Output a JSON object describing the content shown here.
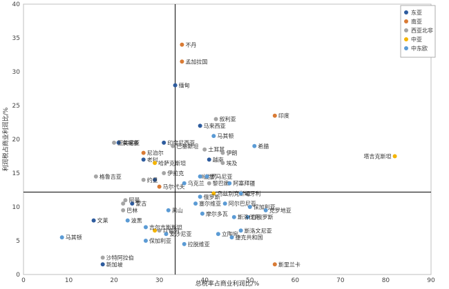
{
  "chart_data": {
    "type": "scatter",
    "xlabel": "总税率占商业利润比/%",
    "ylabel": "利润税占商业利润比/%",
    "xlim": [
      0,
      90
    ],
    "ylim": [
      0,
      40
    ],
    "xticks": [
      0,
      10,
      20,
      30,
      40,
      50,
      60,
      70,
      80,
      90
    ],
    "yticks": [
      0,
      5,
      10,
      15,
      20,
      25,
      30,
      35,
      40
    ],
    "reference_lines": {
      "x": 33.5,
      "y": 12.2
    },
    "legend_position": "top-right",
    "series": [
      {
        "name": "东亚",
        "color": "#2E5C9E",
        "points": [
          {
            "x": 33.5,
            "y": 28,
            "label": "缅甸"
          },
          {
            "x": 39,
            "y": 22,
            "label": "马来西亚"
          },
          {
            "x": 31,
            "y": 19.5,
            "label": "印度尼西亚"
          },
          {
            "x": 21,
            "y": 19.5,
            "label": "柬埔寨"
          },
          {
            "x": 26.5,
            "y": 17,
            "label": "老挝"
          },
          {
            "x": 15.5,
            "y": 8,
            "label": "文莱"
          },
          {
            "x": 24,
            "y": 10.5,
            "label": "蒙古"
          },
          {
            "x": 17.5,
            "y": 1.5,
            "label": "新加坡"
          },
          {
            "x": 41,
            "y": 17,
            "label": "越南"
          },
          {
            "x": 29,
            "y": 14,
            "label": ""
          }
        ]
      },
      {
        "name": "南亚",
        "color": "#D97B35",
        "points": [
          {
            "x": 35,
            "y": 34,
            "label": "不丹"
          },
          {
            "x": 35,
            "y": 31.5,
            "label": "孟加拉国"
          },
          {
            "x": 55.5,
            "y": 23.5,
            "label": "印度"
          },
          {
            "x": 26.5,
            "y": 18,
            "label": "尼泊尔"
          },
          {
            "x": 30,
            "y": 13,
            "label": "马尔代夫"
          },
          {
            "x": 55.5,
            "y": 1.5,
            "label": "斯里兰卡"
          }
        ]
      },
      {
        "name": "西亚北非",
        "color": "#A5A5A5",
        "points": [
          {
            "x": 42.5,
            "y": 23,
            "label": "叙利亚"
          },
          {
            "x": 20,
            "y": 19.5,
            "label": "亚美尼亚"
          },
          {
            "x": 33,
            "y": 19,
            "label": "巴基斯坦"
          },
          {
            "x": 40,
            "y": 18.5,
            "label": "土耳其"
          },
          {
            "x": 44,
            "y": 18,
            "label": "伊朗"
          },
          {
            "x": 44,
            "y": 16.5,
            "label": "埃及"
          },
          {
            "x": 16,
            "y": 14.5,
            "label": "格鲁吉亚"
          },
          {
            "x": 31,
            "y": 15,
            "label": "伊拉克"
          },
          {
            "x": 39.5,
            "y": 14.5,
            "label": "也门"
          },
          {
            "x": 26.5,
            "y": 14,
            "label": "约旦"
          },
          {
            "x": 41,
            "y": 13.5,
            "label": "黎巴嫩"
          },
          {
            "x": 22.5,
            "y": 11,
            "label": "阿曼"
          },
          {
            "x": 22,
            "y": 10.5,
            "label": ""
          },
          {
            "x": 22,
            "y": 9.5,
            "label": "巴林"
          },
          {
            "x": 30,
            "y": 6.5,
            "label": "以色列"
          },
          {
            "x": 17.5,
            "y": 2.5,
            "label": "沙特阿拉伯"
          }
        ]
      },
      {
        "name": "中亚",
        "color": "#F4B400",
        "points": [
          {
            "x": 82,
            "y": 17.5,
            "label": "塔吉克斯坦"
          },
          {
            "x": 29,
            "y": 16.5,
            "label": "哈萨克斯坦"
          },
          {
            "x": 42,
            "y": 12,
            "label": "乌兹别克斯坦"
          },
          {
            "x": 29,
            "y": 6.5,
            "label": ""
          }
        ]
      },
      {
        "name": "中东欧",
        "color": "#5B9BD5",
        "points": [
          {
            "x": 45.5,
            "y": 13.5,
            "label": "阿塞拜疆"
          },
          {
            "x": 39,
            "y": 14.5,
            "label": "波兰"
          },
          {
            "x": 40.5,
            "y": 14.5,
            "label": "罗马尼亚"
          },
          {
            "x": 35.5,
            "y": 13.5,
            "label": "乌克兰"
          },
          {
            "x": 39,
            "y": 11.5,
            "label": "俄罗斯"
          },
          {
            "x": 44.5,
            "y": 10.5,
            "label": "阿尔巴尼亚"
          },
          {
            "x": 38,
            "y": 10.5,
            "label": "塞尔维亚"
          },
          {
            "x": 51,
            "y": 19,
            "label": "希腊"
          },
          {
            "x": 42,
            "y": 20.5,
            "label": "马其顿"
          },
          {
            "x": 48,
            "y": 12,
            "label": "匈牙利"
          },
          {
            "x": 50,
            "y": 10,
            "label": "保加利亚"
          },
          {
            "x": 53.5,
            "y": 9.5,
            "label": "克罗地亚"
          },
          {
            "x": 49.5,
            "y": 8.5,
            "label": "白俄罗斯"
          },
          {
            "x": 46.5,
            "y": 8.5,
            "label": "斯洛伐克"
          },
          {
            "x": 32,
            "y": 9.5,
            "label": "黑山"
          },
          {
            "x": 39.5,
            "y": 9,
            "label": "摩尔多瓦"
          },
          {
            "x": 48,
            "y": 6.5,
            "label": "斯洛文尼亚"
          },
          {
            "x": 23,
            "y": 8,
            "label": "波黑"
          },
          {
            "x": 43,
            "y": 6,
            "label": "立陶宛"
          },
          {
            "x": 31.5,
            "y": 6,
            "label": "爱沙尼亚"
          },
          {
            "x": 27,
            "y": 5,
            "label": "保加利亚"
          },
          {
            "x": 8.5,
            "y": 5.5,
            "label": "马其顿"
          },
          {
            "x": 35.5,
            "y": 4.5,
            "label": "拉脱维亚"
          },
          {
            "x": 46,
            "y": 5.5,
            "label": "捷克共和国"
          },
          {
            "x": 27,
            "y": 7,
            "label": "吉尔吉斯斯坦"
          }
        ]
      }
    ]
  }
}
